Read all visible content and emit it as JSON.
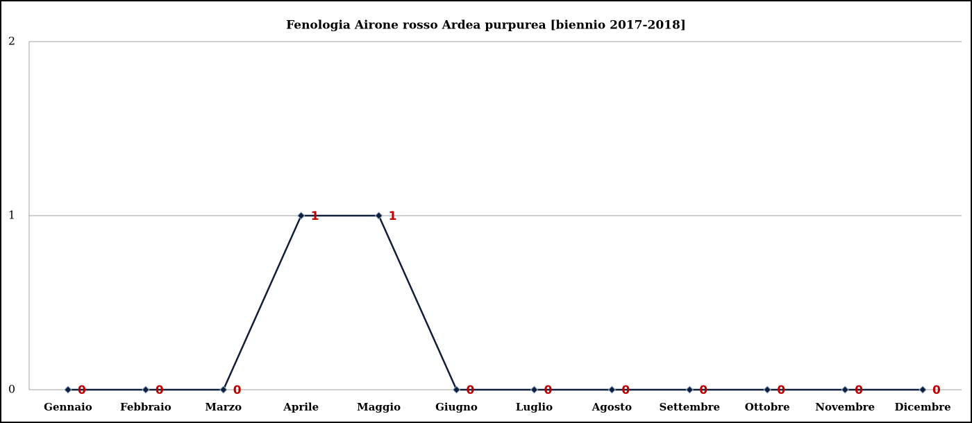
{
  "chart_data": {
    "type": "line",
    "title": "Fenologia Airone rosso Ardea purpurea [biennio 2017-2018]",
    "categories": [
      "Gennaio",
      "Febbraio",
      "Marzo",
      "Aprile",
      "Maggio",
      "Giugno",
      "Luglio",
      "Agosto",
      "Settembre",
      "Ottobre",
      "Novembre",
      "Dicembre"
    ],
    "series": [
      {
        "color": "#0f1f3a",
        "values": [
          0,
          0,
          0,
          1,
          1,
          0,
          0,
          0,
          0,
          0,
          0,
          0
        ]
      }
    ],
    "label_color": "#c00000",
    "ylim": [
      0,
      2
    ],
    "yticks": [
      0,
      1,
      2
    ],
    "grid": true
  }
}
